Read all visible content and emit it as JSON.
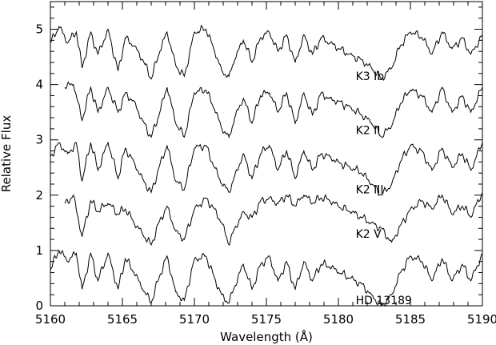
{
  "chart_data": {
    "type": "line",
    "title": "",
    "xlabel": "Wavelength (Å)",
    "ylabel": "Relative Flux",
    "xlim": [
      5160,
      5190
    ],
    "ylim": [
      0,
      5.5
    ],
    "x_ticks": [
      "5160",
      "5165",
      "5170",
      "5175",
      "5180",
      "5185",
      "5190"
    ],
    "y_ticks": [
      "0",
      "1",
      "2",
      "3",
      "4",
      "5"
    ],
    "grid": false,
    "legend": "none",
    "line_color": "#000000",
    "series": [
      {
        "name": "K3 Ib",
        "x": [
          5160,
          5160.6,
          5161.2,
          5161.8,
          5162.2,
          5162.8,
          5163.3,
          5164.0,
          5164.7,
          5165.2,
          5165.8,
          5166.4,
          5167.0,
          5167.6,
          5168.1,
          5168.7,
          5169.3,
          5170.0,
          5170.8,
          5171.4,
          5171.9,
          5172.4,
          5172.8,
          5173.4,
          5174.0,
          5174.6,
          5175.2,
          5175.8,
          5176.4,
          5177.0,
          5177.6,
          5178.2,
          5178.8,
          5179.4,
          5180.0,
          5180.8,
          5181.6,
          5182.3,
          5183.0,
          5183.7,
          5184.3,
          5185.0,
          5185.8,
          5186.5,
          5187.2,
          5187.9,
          5188.6,
          5189.2,
          5190
        ],
        "y": [
          4.75,
          5.05,
          4.75,
          4.95,
          4.3,
          4.95,
          4.55,
          5.0,
          4.25,
          4.85,
          4.7,
          4.45,
          4.1,
          4.6,
          4.95,
          4.35,
          4.15,
          4.95,
          5.0,
          4.6,
          4.25,
          4.15,
          4.45,
          4.8,
          4.4,
          4.85,
          4.95,
          4.6,
          4.9,
          4.4,
          4.9,
          4.55,
          4.85,
          4.75,
          4.65,
          4.55,
          4.45,
          4.3,
          4.1,
          4.3,
          4.7,
          4.95,
          4.85,
          4.55,
          4.95,
          4.65,
          4.85,
          4.55,
          4.9
        ],
        "label": "K3 Ib"
      },
      {
        "name": "K2 II",
        "x": [
          5161.0,
          5161.6,
          5162.2,
          5162.8,
          5163.3,
          5164.0,
          5164.7,
          5165.2,
          5165.8,
          5166.4,
          5167.0,
          5167.6,
          5168.1,
          5168.7,
          5169.3,
          5170.0,
          5170.8,
          5171.4,
          5171.9,
          5172.4,
          5172.8,
          5173.4,
          5174.0,
          5174.6,
          5175.2,
          5175.8,
          5176.4,
          5177.0,
          5177.6,
          5178.2,
          5178.8,
          5179.4,
          5180.0,
          5180.8,
          5181.6,
          5182.3,
          5183.0,
          5183.7,
          5184.3,
          5185.0,
          5185.8,
          5186.5,
          5187.2,
          5187.9,
          5188.6,
          5189.2,
          5190
        ],
        "y": [
          3.95,
          4.0,
          3.35,
          3.95,
          3.5,
          3.95,
          3.5,
          3.85,
          3.7,
          3.35,
          3.05,
          3.5,
          3.95,
          3.3,
          3.05,
          3.85,
          3.9,
          3.55,
          3.2,
          3.05,
          3.4,
          3.75,
          3.3,
          3.8,
          3.85,
          3.5,
          3.85,
          3.3,
          3.85,
          3.45,
          3.85,
          3.75,
          3.7,
          3.6,
          3.45,
          3.3,
          3.05,
          3.25,
          3.65,
          3.9,
          3.8,
          3.5,
          3.95,
          3.5,
          3.8,
          3.5,
          3.95
        ],
        "label": "K2 II"
      },
      {
        "name": "K2 III",
        "x": [
          5160,
          5160.6,
          5161.2,
          5161.8,
          5162.2,
          5162.8,
          5163.3,
          5164.0,
          5164.7,
          5165.2,
          5165.8,
          5166.4,
          5167.0,
          5167.6,
          5168.1,
          5168.7,
          5169.3,
          5170.0,
          5170.8,
          5171.4,
          5171.9,
          5172.4,
          5172.8,
          5173.4,
          5174.0,
          5174.6,
          5175.2,
          5175.8,
          5176.4,
          5177.0,
          5177.6,
          5178.2,
          5178.8,
          5179.4,
          5180.0,
          5180.8,
          5181.6,
          5182.3,
          5183.0,
          5183.7,
          5184.3,
          5185.0,
          5185.8,
          5186.5,
          5187.2,
          5187.9,
          5188.6,
          5189.2,
          5190
        ],
        "y": [
          2.7,
          2.95,
          2.75,
          2.95,
          2.25,
          2.95,
          2.45,
          2.95,
          2.3,
          2.85,
          2.6,
          2.3,
          2.05,
          2.55,
          2.9,
          2.25,
          2.1,
          2.85,
          2.9,
          2.5,
          2.2,
          2.05,
          2.35,
          2.75,
          2.3,
          2.75,
          2.9,
          2.45,
          2.8,
          2.3,
          2.8,
          2.45,
          2.75,
          2.7,
          2.6,
          2.5,
          2.4,
          2.2,
          2.0,
          2.2,
          2.6,
          2.9,
          2.8,
          2.45,
          2.85,
          2.5,
          2.75,
          2.45,
          2.95
        ],
        "label": "K2 III"
      },
      {
        "name": "K2 V",
        "x": [
          5161.0,
          5161.6,
          5162.2,
          5162.8,
          5163.3,
          5164.0,
          5164.7,
          5165.2,
          5165.8,
          5166.4,
          5167.0,
          5167.6,
          5168.1,
          5168.7,
          5169.3,
          5170.0,
          5170.8,
          5171.4,
          5171.9,
          5172.4,
          5172.8,
          5173.4,
          5174.0,
          5174.6,
          5175.2,
          5175.8,
          5176.4,
          5177.0,
          5177.6,
          5178.2,
          5178.8,
          5179.4,
          5180.0,
          5180.8,
          5181.6,
          5182.3,
          5183.0,
          5183.7,
          5184.3,
          5185.0,
          5185.8,
          5186.5,
          5187.2,
          5187.9,
          5188.6,
          5189.2,
          5190
        ],
        "y": [
          1.85,
          2.0,
          1.25,
          1.9,
          1.7,
          1.85,
          1.65,
          1.75,
          1.5,
          1.3,
          1.1,
          1.55,
          1.8,
          1.35,
          1.2,
          1.75,
          1.95,
          1.75,
          1.5,
          1.1,
          1.4,
          1.7,
          1.6,
          1.9,
          1.95,
          1.85,
          2.0,
          1.8,
          2.0,
          1.85,
          1.95,
          1.9,
          1.8,
          1.7,
          1.6,
          1.5,
          1.4,
          1.15,
          1.45,
          1.75,
          1.9,
          1.75,
          2.0,
          1.65,
          1.8,
          1.6,
          2.05
        ],
        "label": "K2 V"
      },
      {
        "name": "HD 13189",
        "x": [
          5160,
          5160.6,
          5161.2,
          5161.8,
          5162.2,
          5162.8,
          5163.3,
          5164.0,
          5164.7,
          5165.2,
          5165.8,
          5166.4,
          5167.0,
          5167.6,
          5168.1,
          5168.7,
          5169.3,
          5170.0,
          5170.8,
          5171.4,
          5171.9,
          5172.4,
          5172.8,
          5173.4,
          5174.0,
          5174.6,
          5175.2,
          5175.8,
          5176.4,
          5177.0,
          5177.6,
          5178.2,
          5178.8,
          5179.4,
          5180.0,
          5180.8,
          5181.6,
          5182.3,
          5183.0,
          5183.7,
          5184.3,
          5185.0,
          5185.8,
          5186.5,
          5187.2,
          5187.9,
          5188.6,
          5189.2,
          5190
        ],
        "y": [
          0.65,
          1.0,
          0.8,
          0.95,
          0.3,
          0.95,
          0.45,
          0.95,
          0.3,
          0.85,
          0.6,
          0.3,
          0.05,
          0.55,
          0.9,
          0.25,
          0.1,
          0.85,
          0.9,
          0.5,
          0.2,
          0.05,
          0.35,
          0.75,
          0.3,
          0.75,
          0.9,
          0.45,
          0.8,
          0.3,
          0.8,
          0.45,
          0.75,
          0.7,
          0.6,
          0.5,
          0.4,
          0.2,
          0.0,
          0.2,
          0.6,
          0.9,
          0.8,
          0.45,
          0.85,
          0.45,
          0.75,
          0.45,
          0.95
        ],
        "label": "HD 13189"
      }
    ]
  }
}
